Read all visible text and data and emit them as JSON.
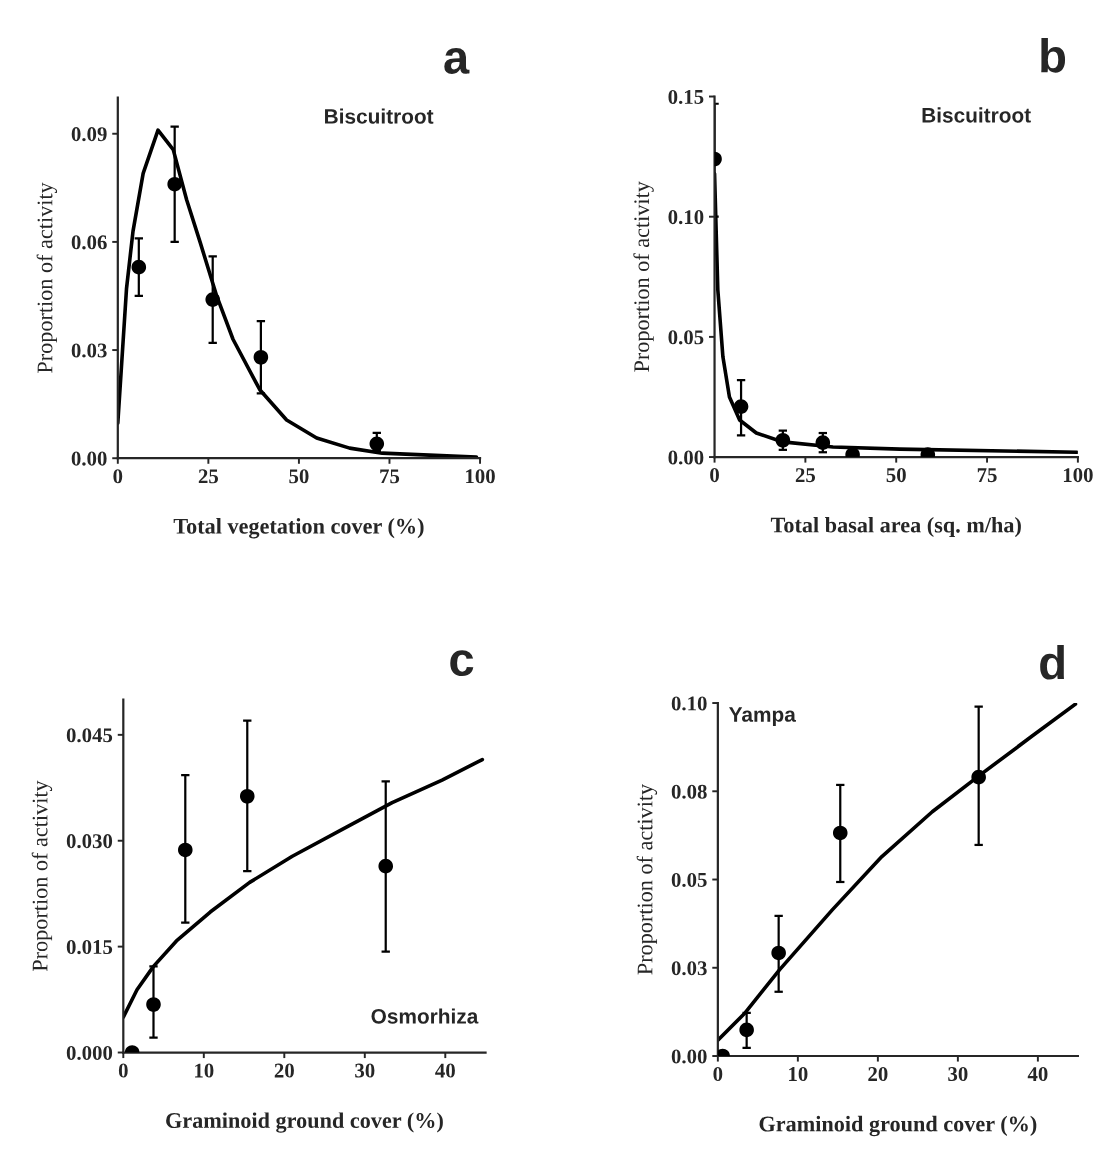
{
  "chart_data": [
    {
      "type": "scatter",
      "title": "Biscuitroot",
      "xlabel": "Total vegetation cover (%)",
      "ylabel": "Proportion of activity",
      "annotations": [
        "a"
      ],
      "xlim": [
        0,
        100
      ],
      "ylim": [
        0,
        0.1
      ],
      "xticks": [
        0,
        25,
        50,
        75,
        100
      ],
      "yticks": [
        {
          "value": 0,
          "label": "0.00"
        },
        0.03,
        0.06,
        0.09
      ],
      "grid": false,
      "legend": false,
      "series": [
        {
          "marker": "circle",
          "color": "#000000",
          "x": [
            5.8,
            15.7,
            26.2,
            39.5,
            71.5
          ],
          "values": [
            0.053,
            0.076,
            0.044,
            0.028,
            0.004
          ],
          "errors": [
            [
              0.045,
              0.061
            ],
            [
              0.06,
              0.092
            ],
            [
              0.032,
              0.056
            ],
            [
              0.018,
              0.038
            ],
            [
              0.002,
              0.007
            ]
          ]
        },
        {
          "type": "line",
          "marker": "none",
          "color": "#000000",
          "line_style": "solid",
          "x": [
            0,
            2.4,
            4.2,
            7,
            11.1,
            15.3,
            19,
            22.7,
            27.3,
            31.8,
            39.2,
            46.6,
            54.9,
            64,
            73,
            99
          ],
          "values": [
            0.0097,
            0.047,
            0.063,
            0.079,
            0.091,
            0.0856,
            0.0717,
            0.06,
            0.045,
            0.033,
            0.019,
            0.0106,
            0.0056,
            0.0028,
            0.0014,
            0.0003
          ]
        }
      ]
    },
    {
      "type": "scatter",
      "title": "Biscuitroot",
      "xlabel": "Total basal area (sq. m/ha)",
      "ylabel": "Proportion of activity",
      "annotations": [
        "b"
      ],
      "xlim": [
        0,
        100
      ],
      "ylim": [
        0,
        0.15
      ],
      "xticks": [
        0,
        25,
        50,
        75,
        100
      ],
      "yticks": [
        {
          "value": 0,
          "label": "0.00"
        },
        0.05,
        {
          "value": 0.1,
          "label": "0.10"
        },
        0.15
      ],
      "grid": false,
      "legend": false,
      "series": [
        {
          "marker": "circle",
          "color": "#000000",
          "x": [
            0,
            7.3,
            18.8,
            29.8,
            38,
            58.7
          ],
          "values": [
            0.124,
            0.021,
            0.007,
            0.006,
            0.001,
            0.001
          ],
          "errors": [
            [
              0.1,
              0.147
            ],
            [
              0.009,
              0.032
            ],
            [
              0.003,
              0.011
            ],
            [
              0.002,
              0.01
            ],
            null,
            null
          ]
        },
        {
          "type": "line",
          "marker": "none",
          "color": "#000000",
          "line_style": "solid",
          "x": [
            0,
            0.9,
            2.3,
            4.1,
            6.9,
            11.5,
            18.8,
            32.6,
            51,
            99.7
          ],
          "values": [
            0.118,
            0.0696,
            0.0417,
            0.025,
            0.0154,
            0.01,
            0.0063,
            0.0042,
            0.0033,
            0.002
          ]
        }
      ]
    },
    {
      "type": "scatter",
      "title": "Osmorhiza",
      "xlabel": "Graminoid ground cover (%)",
      "ylabel": "Proportion of activity",
      "annotations": [
        "c"
      ],
      "xlim": [
        0,
        45
      ],
      "ylim": [
        0,
        0.05
      ],
      "xticks": [
        0,
        10,
        20,
        30,
        40
      ],
      "yticks": [
        {
          "value": 0,
          "label": "0.000"
        },
        0.015,
        {
          "value": 0.03,
          "label": "0.030"
        },
        0.045
      ],
      "grid": false,
      "legend": false,
      "series": [
        {
          "marker": "circle",
          "color": "#000000",
          "x": [
            1.1,
            3.75,
            7.7,
            15.4,
            32.6
          ],
          "values": [
            0.0,
            0.0068,
            0.0287,
            0.0363,
            0.0264
          ],
          "errors": [
            null,
            [
              0.0021,
              0.0122
            ],
            [
              0.0184,
              0.0393
            ],
            [
              0.0257,
              0.047
            ],
            [
              0.0143,
              0.0384
            ]
          ]
        },
        {
          "type": "line",
          "marker": "none",
          "color": "#000000",
          "line_style": "solid",
          "x": [
            0,
            1.7,
            3.75,
            6.6,
            10.8,
            15.7,
            21,
            27.2,
            33.4,
            39.6,
            44.6
          ],
          "values": [
            0.005,
            0.0089,
            0.0122,
            0.0158,
            0.0199,
            0.0241,
            0.0278,
            0.0316,
            0.0354,
            0.0386,
            0.0415
          ]
        }
      ]
    },
    {
      "type": "scatter",
      "title": "Yampa",
      "xlabel": "Graminoid ground cover (%)",
      "ylabel": "Proportion of activity",
      "annotations": [
        "d"
      ],
      "xlim": [
        0,
        45
      ],
      "ylim": [
        0,
        0.1
      ],
      "xticks": [
        0,
        10,
        20,
        30,
        40
      ],
      "yticks": [
        {
          "value": 0,
          "label": "0.00"
        },
        {
          "value": 0.025,
          "label": "0.03"
        },
        0.05,
        {
          "value": 0.075,
          "label": "0.08"
        },
        {
          "value": 0.1,
          "label": "0.10"
        }
      ],
      "grid": false,
      "legend": false,
      "series": [
        {
          "marker": "circle",
          "color": "#000000",
          "x": [
            0.6,
            3.6,
            7.6,
            15.3,
            32.6
          ],
          "values": [
            0.0,
            0.0074,
            0.0292,
            0.0632,
            0.079
          ],
          "errors": [
            null,
            [
              0.0023,
              0.0122
            ],
            [
              0.0182,
              0.0397
            ],
            [
              0.0493,
              0.0768
            ],
            [
              0.0598,
              0.099
            ]
          ]
        },
        {
          "type": "line",
          "marker": "none",
          "color": "#000000",
          "line_style": "solid",
          "x": [
            0,
            3.4,
            7.7,
            14.3,
            20.5,
            26.8,
            33,
            39.2,
            44.7
          ],
          "values": [
            0.0045,
            0.0122,
            0.0244,
            0.0414,
            0.0565,
            0.0692,
            0.08,
            0.0905,
            0.0997
          ]
        }
      ]
    }
  ]
}
